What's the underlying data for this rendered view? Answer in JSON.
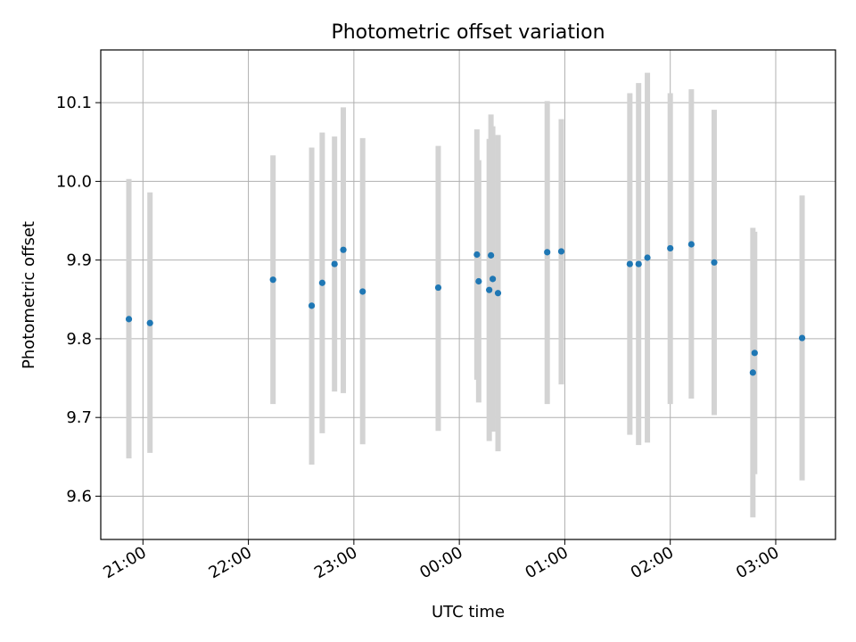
{
  "chart_data": {
    "type": "scatter",
    "title": "Photometric offset variation",
    "xlabel": "UTC time",
    "ylabel": "Photometric offset",
    "x_ticks": [
      "21:00",
      "22:00",
      "23:00",
      "00:00",
      "01:00",
      "02:00",
      "03:00"
    ],
    "y_ticks": [
      "9.6",
      "9.7",
      "9.8",
      "9.9",
      "10.0",
      "10.1"
    ],
    "xlim": [
      "20:36",
      "03:34"
    ],
    "ylim": [
      9.545,
      10.167
    ],
    "grid": true,
    "point_color": "#1f77b4",
    "errorbar_color": "#d3d3d3",
    "points": [
      {
        "x": "20:52",
        "y": 9.825,
        "ylow": 9.648,
        "yhigh": 10.003
      },
      {
        "x": "21:04",
        "y": 9.82,
        "ylow": 9.655,
        "yhigh": 9.986
      },
      {
        "x": "22:14",
        "y": 9.875,
        "ylow": 9.717,
        "yhigh": 10.033
      },
      {
        "x": "22:36",
        "y": 9.842,
        "ylow": 9.64,
        "yhigh": 10.043
      },
      {
        "x": "22:42",
        "y": 9.871,
        "ylow": 9.68,
        "yhigh": 10.062
      },
      {
        "x": "22:49",
        "y": 9.895,
        "ylow": 9.733,
        "yhigh": 10.057
      },
      {
        "x": "22:54",
        "y": 9.913,
        "ylow": 9.731,
        "yhigh": 10.094
      },
      {
        "x": "23:05",
        "y": 9.86,
        "ylow": 9.666,
        "yhigh": 10.055
      },
      {
        "x": "23:48",
        "y": 9.865,
        "ylow": 9.683,
        "yhigh": 10.045
      },
      {
        "x": "00:10",
        "y": 9.907,
        "ylow": 9.748,
        "yhigh": 10.066
      },
      {
        "x": "00:11",
        "y": 9.873,
        "ylow": 9.719,
        "yhigh": 10.027
      },
      {
        "x": "00:17",
        "y": 9.862,
        "ylow": 9.67,
        "yhigh": 10.054
      },
      {
        "x": "00:18",
        "y": 9.906,
        "ylow": 9.727,
        "yhigh": 10.085
      },
      {
        "x": "00:19",
        "y": 9.876,
        "ylow": 9.682,
        "yhigh": 10.07
      },
      {
        "x": "00:22",
        "y": 9.858,
        "ylow": 9.657,
        "yhigh": 10.059
      },
      {
        "x": "00:50",
        "y": 9.91,
        "ylow": 9.717,
        "yhigh": 10.102
      },
      {
        "x": "00:58",
        "y": 9.911,
        "ylow": 9.742,
        "yhigh": 10.079
      },
      {
        "x": "01:37",
        "y": 9.895,
        "ylow": 9.678,
        "yhigh": 10.112
      },
      {
        "x": "01:42",
        "y": 9.895,
        "ylow": 9.665,
        "yhigh": 10.125
      },
      {
        "x": "01:47",
        "y": 9.903,
        "ylow": 9.668,
        "yhigh": 10.138
      },
      {
        "x": "02:00",
        "y": 9.915,
        "ylow": 9.717,
        "yhigh": 10.112
      },
      {
        "x": "02:12",
        "y": 9.92,
        "ylow": 9.724,
        "yhigh": 10.117
      },
      {
        "x": "02:25",
        "y": 9.897,
        "ylow": 9.703,
        "yhigh": 10.091
      },
      {
        "x": "02:47",
        "y": 9.757,
        "ylow": 9.573,
        "yhigh": 9.941
      },
      {
        "x": "02:48",
        "y": 9.782,
        "ylow": 9.628,
        "yhigh": 9.936
      },
      {
        "x": "03:15",
        "y": 9.801,
        "ylow": 9.62,
        "yhigh": 9.982
      }
    ]
  }
}
